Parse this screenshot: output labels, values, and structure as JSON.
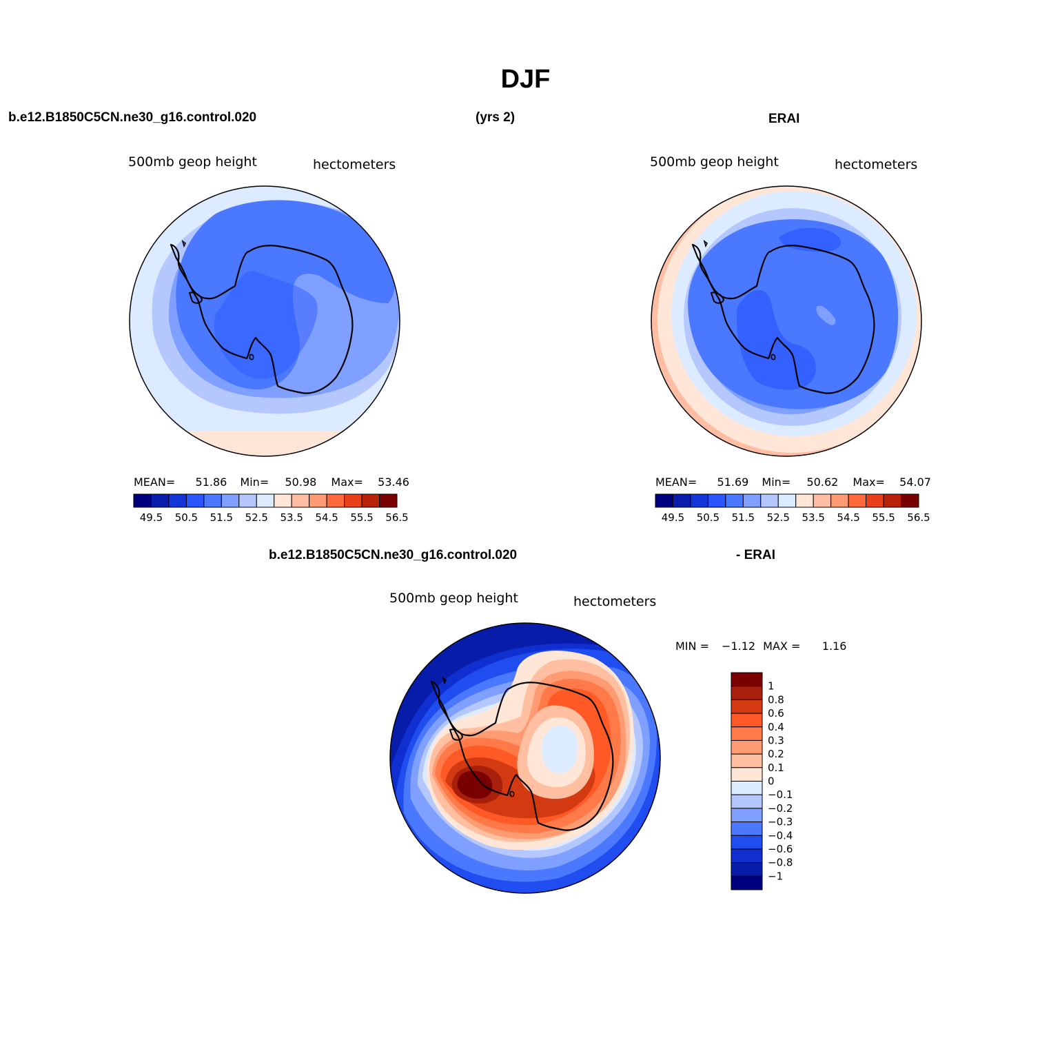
{
  "title": "DJF",
  "top_left_case": "b.e12.B1850C5CN.ne30_g16.control.020",
  "top_years": "(yrs 2)",
  "top_right_case": "ERAI",
  "panels": [
    {
      "variable": "500mb  geop  height",
      "units": "hectometers",
      "stats": {
        "mean_label": "MEAN=",
        "mean": "51.86",
        "min_label": "Min=",
        "min": "50.98",
        "max_label": "Max=",
        "max": "53.46"
      }
    },
    {
      "variable": "500mb  geop  height",
      "units": "hectometers",
      "stats": {
        "mean_label": "MEAN=",
        "mean": "51.69",
        "min_label": "Min=",
        "min": "50.62",
        "max_label": "Max=",
        "max": "54.07"
      }
    },
    {
      "variable": "500mb  geop  height",
      "units": "hectometers",
      "stats": {
        "min_label": "MIN =",
        "min": "−1.12",
        "max_label": "MAX =",
        "max": "1.16"
      }
    }
  ],
  "diff_title_left": "b.e12.B1850C5CN.ne30_g16.control.020",
  "diff_title_right": "- ERAI",
  "abs_colorbar": {
    "colors": [
      "#00007f",
      "#0a1eae",
      "#1436d8",
      "#2a55ff",
      "#4a78ff",
      "#7fa0ff",
      "#b4c8ff",
      "#dcebff",
      "#ffe6d6",
      "#ffbda3",
      "#ff9b73",
      "#ff6a3d",
      "#e8401a",
      "#b82208",
      "#7a0000"
    ],
    "labels": [
      "49.5",
      "50.5",
      "51.5",
      "52.5",
      "53.5",
      "54.5",
      "55.5",
      "56.5"
    ]
  },
  "diff_colorbar": {
    "colors": [
      "#7a0000",
      "#a81f0b",
      "#d43a12",
      "#ff5a26",
      "#ff7a48",
      "#ff9b73",
      "#ffbfa0",
      "#ffe6d6",
      "#dcebff",
      "#b4c8ff",
      "#7fa0ff",
      "#4a78ff",
      "#1f4df0",
      "#0f2fd0",
      "#071ca8",
      "#00007f"
    ],
    "labels": [
      "1",
      "0.8",
      "0.6",
      "0.4",
      "0.3",
      "0.2",
      "0.1",
      "0",
      "−0.1",
      "−0.2",
      "−0.3",
      "−0.4",
      "−0.6",
      "−0.8",
      "−1"
    ]
  }
}
